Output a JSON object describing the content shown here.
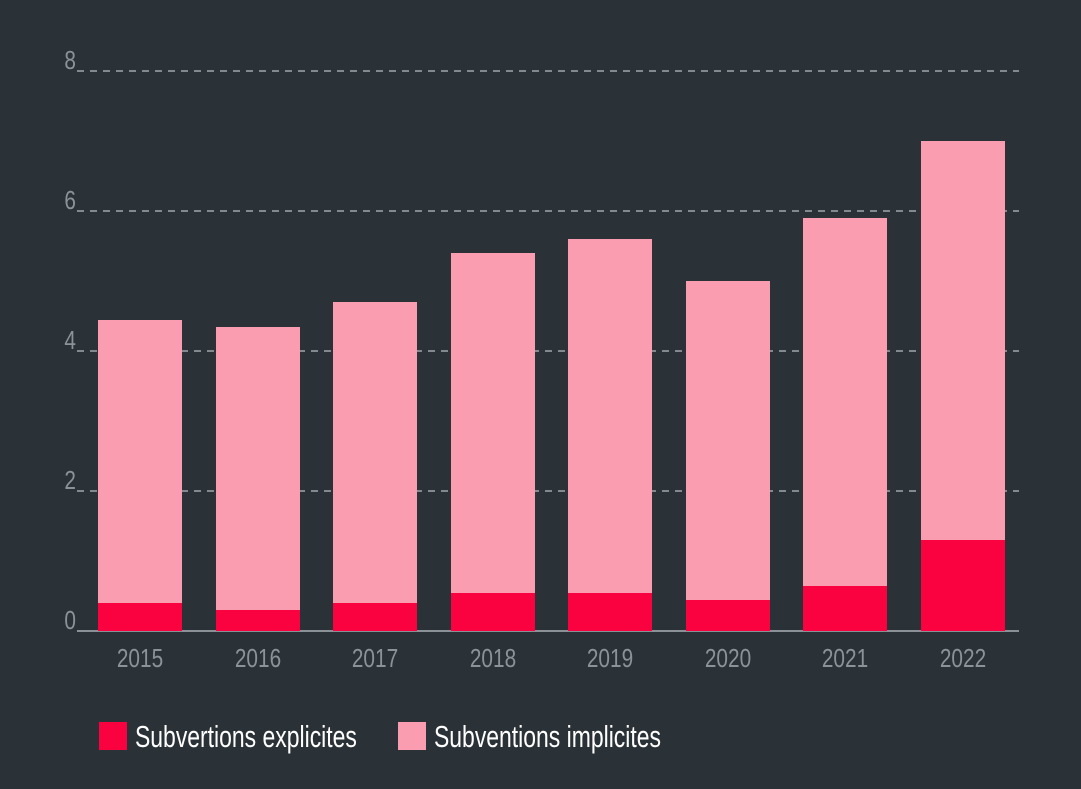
{
  "chart_data": {
    "type": "bar",
    "stacked": true,
    "title": "",
    "xlabel": "",
    "ylabel": "",
    "categories": [
      "2015",
      "2016",
      "2017",
      "2018",
      "2019",
      "2020",
      "2021",
      "2022"
    ],
    "series": [
      {
        "name": "Subvertions explicites",
        "color": "#FA0240",
        "values": [
          0.4,
          0.3,
          0.4,
          0.55,
          0.55,
          0.45,
          0.65,
          1.3
        ]
      },
      {
        "name": "Subventions implicites",
        "color": "#FA9DB1",
        "values": [
          4.05,
          4.05,
          4.3,
          4.85,
          5.05,
          4.55,
          5.25,
          5.7
        ]
      }
    ],
    "stack_totals": [
      4.45,
      4.35,
      4.7,
      5.4,
      5.6,
      5.0,
      5.9,
      7.0
    ],
    "ylim": [
      0,
      8
    ],
    "yticks": [
      0,
      2,
      4,
      6,
      8
    ],
    "grid": "horizontal-dashed",
    "legend_position": "bottom-left"
  },
  "colors": {
    "background": "#2B3237",
    "grid": "#828A90",
    "axis": "#8A9196",
    "tick_label": "#8C9398",
    "legend_text": "#FFFFFF"
  }
}
